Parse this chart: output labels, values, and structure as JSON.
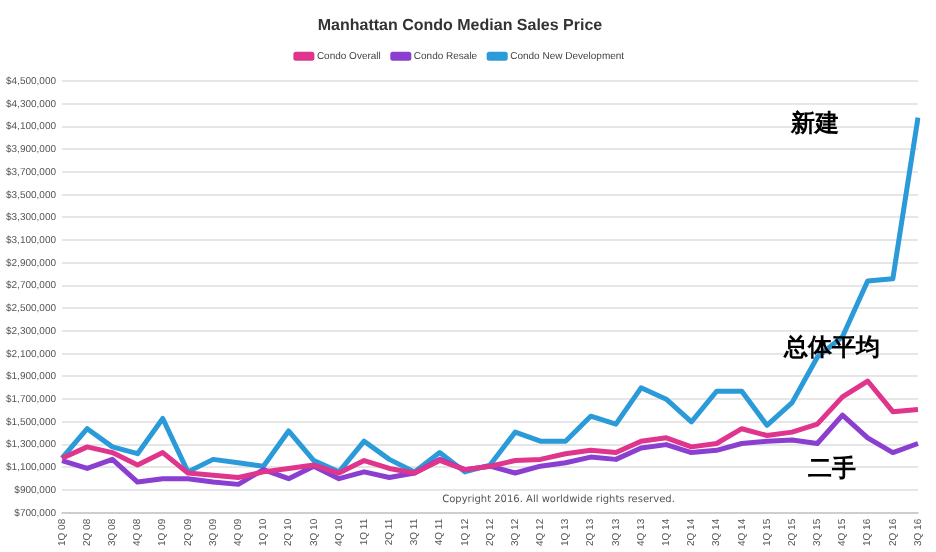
{
  "chart_data": {
    "type": "line",
    "title": "Manhattan Condo Median Sales Price",
    "categories": [
      "1Q 08",
      "2Q 08",
      "3Q 08",
      "4Q 08",
      "1Q 09",
      "2Q 09",
      "3Q 09",
      "4Q 09",
      "1Q 10",
      "2Q 10",
      "3Q 10",
      "4Q 10",
      "1Q 11",
      "2Q 11",
      "3Q 11",
      "4Q 11",
      "1Q 12",
      "2Q 12",
      "3Q 12",
      "4Q 12",
      "1Q 13",
      "2Q 13",
      "3Q 13",
      "4Q 13",
      "1Q 14",
      "2Q 14",
      "3Q 14",
      "4Q 14",
      "1Q 15",
      "2Q 15",
      "3Q 15",
      "4Q 15",
      "1Q 16",
      "2Q 16",
      "3Q 16"
    ],
    "series": [
      {
        "name": "Condo Overall",
        "color": "#e0358c",
        "values": [
          1180000,
          1280000,
          1230000,
          1120000,
          1230000,
          1050000,
          1030000,
          1010000,
          1060000,
          1090000,
          1120000,
          1050000,
          1160000,
          1090000,
          1050000,
          1160000,
          1080000,
          1110000,
          1160000,
          1170000,
          1220000,
          1250000,
          1230000,
          1330000,
          1360000,
          1280000,
          1310000,
          1440000,
          1380000,
          1410000,
          1480000,
          1720000,
          1860000,
          1590000,
          1610000
        ]
      },
      {
        "name": "Condo Resale",
        "color": "#8a3fd0",
        "values": [
          1160000,
          1090000,
          1170000,
          970000,
          1000000,
          1000000,
          970000,
          950000,
          1080000,
          1000000,
          1110000,
          1000000,
          1060000,
          1010000,
          1050000,
          1170000,
          1080000,
          1110000,
          1050000,
          1110000,
          1140000,
          1190000,
          1170000,
          1270000,
          1300000,
          1230000,
          1250000,
          1310000,
          1330000,
          1340000,
          1310000,
          1560000,
          1360000,
          1230000,
          1310000
        ]
      },
      {
        "name": "Condo New Development",
        "color": "#2a9ad8",
        "values": [
          1180000,
          1440000,
          1280000,
          1220000,
          1530000,
          1060000,
          1170000,
          1140000,
          1110000,
          1420000,
          1160000,
          1060000,
          1330000,
          1170000,
          1060000,
          1230000,
          1060000,
          1120000,
          1410000,
          1330000,
          1330000,
          1550000,
          1480000,
          1800000,
          1700000,
          1500000,
          1770000,
          1770000,
          1470000,
          1670000,
          2070000,
          2250000,
          2740000,
          2760000,
          4180000
        ]
      }
    ],
    "ylim": [
      700000,
      4500000
    ],
    "yticks": [
      {
        "value": 700000,
        "label": "$700,000"
      },
      {
        "value": 900000,
        "label": "$900,000"
      },
      {
        "value": 1100000,
        "label": "$1,100,000"
      },
      {
        "value": 1300000,
        "label": "$1,300,000"
      },
      {
        "value": 1500000,
        "label": "$1,500,000"
      },
      {
        "value": 1700000,
        "label": "$1,700,000"
      },
      {
        "value": 1900000,
        "label": "$1,900,000"
      },
      {
        "value": 2100000,
        "label": "$2,100,000"
      },
      {
        "value": 2300000,
        "label": "$2,300,000"
      },
      {
        "value": 2500000,
        "label": "$2,500,000"
      },
      {
        "value": 2700000,
        "label": "$2,700,000"
      },
      {
        "value": 2900000,
        "label": "$2,900,000"
      },
      {
        "value": 3100000,
        "label": "$3,100,000"
      },
      {
        "value": 3300000,
        "label": "$3,300,000"
      },
      {
        "value": 3500000,
        "label": "$3,500,000"
      },
      {
        "value": 3700000,
        "label": "$3,700,000"
      },
      {
        "value": 3900000,
        "label": "$3,900,000"
      },
      {
        "value": 4100000,
        "label": "$4,100,000"
      },
      {
        "value": 4300000,
        "label": "$4,300,000"
      },
      {
        "value": 4500000,
        "label": "$4,500,000"
      }
    ],
    "grid": "y",
    "legend": "top",
    "marker": "none",
    "line_style": "solid",
    "annotations": [
      "新建",
      "总体平均",
      "二手",
      "Copyright 2016. All worldwide rights reserved."
    ]
  }
}
